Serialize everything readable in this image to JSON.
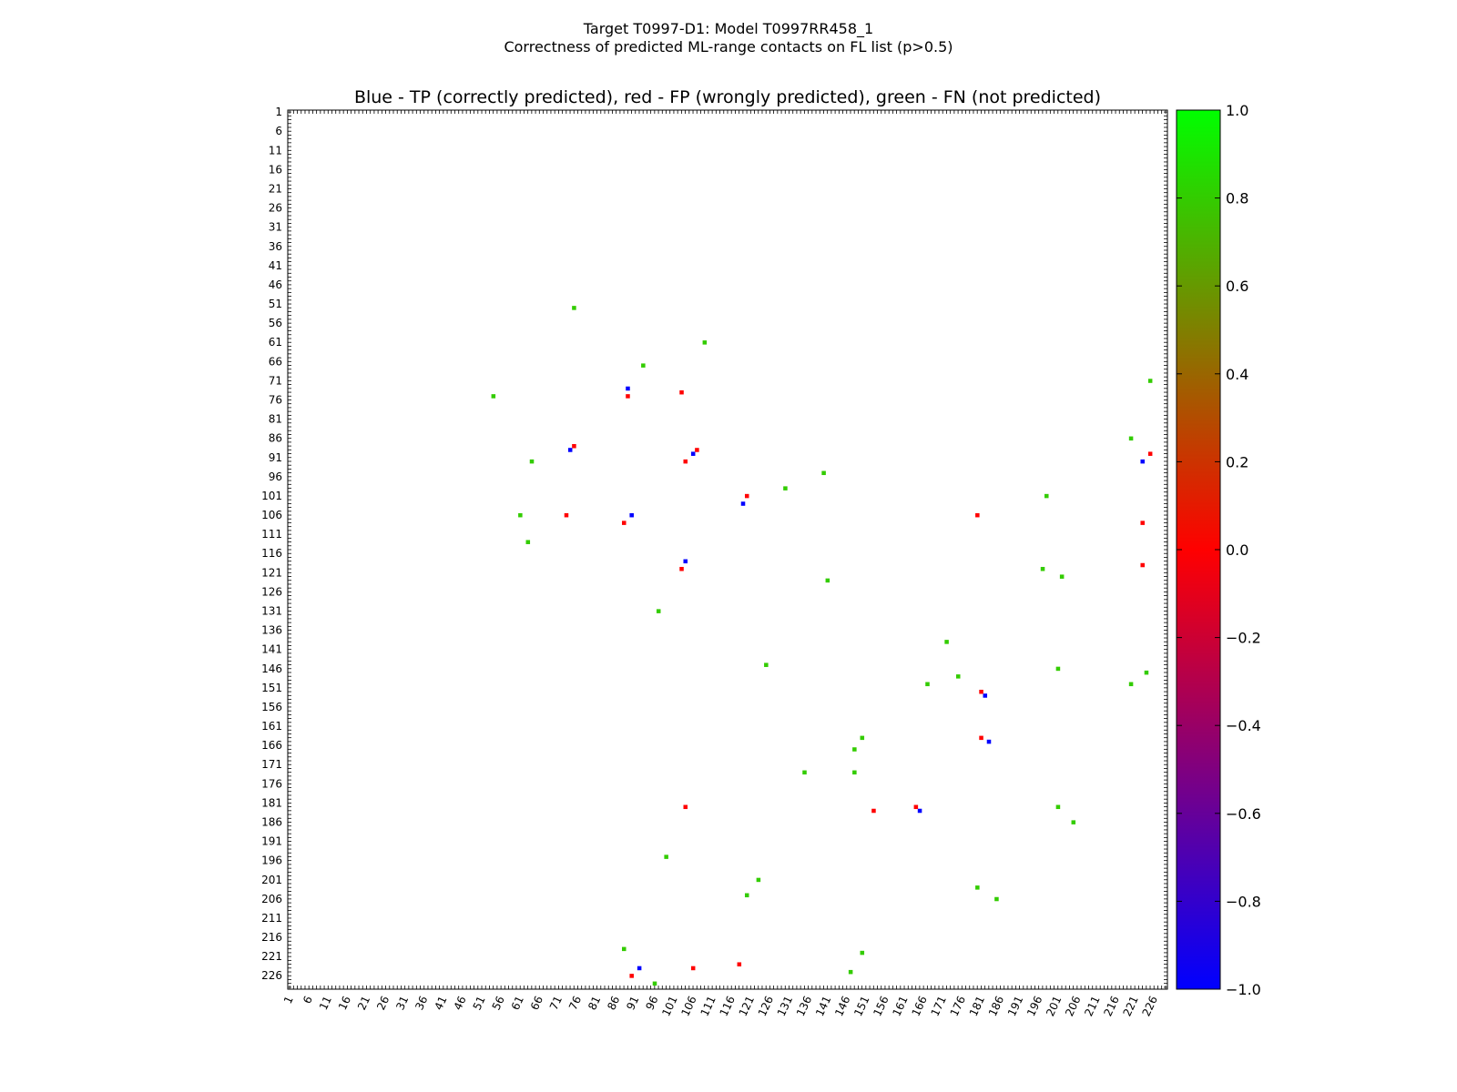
{
  "figure": {
    "suptitle_line1": "Target T0997-D1: Model T0997RR458_1",
    "suptitle_line2": "Correctness of predicted ML-range contacts on FL list (p>0.5)"
  },
  "chart_data": {
    "type": "heatmap",
    "title": "Blue - TP (correctly predicted), red - FP (wrongly predicted), green - FN (not predicted)",
    "xlabel": "",
    "ylabel": "",
    "xlim": [
      1,
      229
    ],
    "ylim": [
      1,
      229
    ],
    "y_inverted": true,
    "tick_labels": [
      "1",
      "6",
      "11",
      "16",
      "21",
      "26",
      "31",
      "36",
      "41",
      "46",
      "51",
      "56",
      "61",
      "66",
      "71",
      "76",
      "81",
      "86",
      "91",
      "96",
      "101",
      "106",
      "111",
      "116",
      "121",
      "126",
      "131",
      "136",
      "141",
      "146",
      "151",
      "156",
      "161",
      "166",
      "171",
      "176",
      "181",
      "186",
      "191",
      "196",
      "201",
      "206",
      "211",
      "216",
      "221",
      "226"
    ],
    "colorbar": {
      "min": -1.0,
      "max": 1.0,
      "tick_labels": [
        "1.0",
        "0.8",
        "0.6",
        "0.4",
        "0.2",
        "0.0",
        "−0.2",
        "−0.4",
        "−0.6",
        "−0.8",
        "−1.0"
      ],
      "tick_values": [
        1.0,
        0.8,
        0.6,
        0.4,
        0.2,
        0.0,
        -0.2,
        -0.4,
        -0.6,
        -0.8,
        -1.0
      ],
      "colormap": [
        "#0000ff",
        "#ff0000",
        "#00ff00"
      ]
    },
    "category_colors": {
      "TP": "#0000ff",
      "FP": "#ff0000",
      "FN": "#33cc00"
    },
    "contacts": [
      {
        "type": "TP",
        "x": 89,
        "y": 73
      },
      {
        "type": "FP",
        "x": 89,
        "y": 75
      },
      {
        "type": "FP",
        "x": 103,
        "y": 74
      },
      {
        "type": "TP",
        "x": 74,
        "y": 89
      },
      {
        "type": "FP",
        "x": 75,
        "y": 88
      },
      {
        "type": "TP",
        "x": 106,
        "y": 90
      },
      {
        "type": "FP",
        "x": 107,
        "y": 89
      },
      {
        "type": "FP",
        "x": 104,
        "y": 92
      },
      {
        "type": "TP",
        "x": 119,
        "y": 103
      },
      {
        "type": "FP",
        "x": 120,
        "y": 101
      },
      {
        "type": "FP",
        "x": 73,
        "y": 106
      },
      {
        "type": "TP",
        "x": 90,
        "y": 106
      },
      {
        "type": "FP",
        "x": 88,
        "y": 108
      },
      {
        "type": "TP",
        "x": 104,
        "y": 118
      },
      {
        "type": "FP",
        "x": 103,
        "y": 120
      },
      {
        "type": "TP",
        "x": 223,
        "y": 92
      },
      {
        "type": "FP",
        "x": 225,
        "y": 90
      },
      {
        "type": "FP",
        "x": 223,
        "y": 108
      },
      {
        "type": "FP",
        "x": 223,
        "y": 119
      },
      {
        "type": "FP",
        "x": 180,
        "y": 106
      },
      {
        "type": "TP",
        "x": 182,
        "y": 153
      },
      {
        "type": "FP",
        "x": 181,
        "y": 152
      },
      {
        "type": "TP",
        "x": 183,
        "y": 165
      },
      {
        "type": "FP",
        "x": 181,
        "y": 164
      },
      {
        "type": "FP",
        "x": 153,
        "y": 183
      },
      {
        "type": "TP",
        "x": 165,
        "y": 183
      },
      {
        "type": "FP",
        "x": 164,
        "y": 182
      },
      {
        "type": "FP",
        "x": 104,
        "y": 182
      },
      {
        "type": "TP",
        "x": 92,
        "y": 224
      },
      {
        "type": "FP",
        "x": 90,
        "y": 226
      },
      {
        "type": "FP",
        "x": 106,
        "y": 224
      },
      {
        "type": "FP",
        "x": 118,
        "y": 223
      },
      {
        "type": "FN",
        "x": 75,
        "y": 52
      },
      {
        "type": "FN",
        "x": 109,
        "y": 61
      },
      {
        "type": "FN",
        "x": 93,
        "y": 67
      },
      {
        "type": "FN",
        "x": 54,
        "y": 75
      },
      {
        "type": "FN",
        "x": 64,
        "y": 92
      },
      {
        "type": "FN",
        "x": 61,
        "y": 106
      },
      {
        "type": "FN",
        "x": 63,
        "y": 113
      },
      {
        "type": "FN",
        "x": 130,
        "y": 99
      },
      {
        "type": "FN",
        "x": 140,
        "y": 95
      },
      {
        "type": "FN",
        "x": 198,
        "y": 101
      },
      {
        "type": "FN",
        "x": 202,
        "y": 122
      },
      {
        "type": "FN",
        "x": 197,
        "y": 120
      },
      {
        "type": "FN",
        "x": 141,
        "y": 123
      },
      {
        "type": "FN",
        "x": 97,
        "y": 131
      },
      {
        "type": "FN",
        "x": 125,
        "y": 145
      },
      {
        "type": "FN",
        "x": 167,
        "y": 150
      },
      {
        "type": "FN",
        "x": 175,
        "y": 148
      },
      {
        "type": "FN",
        "x": 172,
        "y": 139
      },
      {
        "type": "FN",
        "x": 201,
        "y": 146
      },
      {
        "type": "FN",
        "x": 220,
        "y": 150
      },
      {
        "type": "FN",
        "x": 224,
        "y": 147
      },
      {
        "type": "FN",
        "x": 148,
        "y": 167
      },
      {
        "type": "FN",
        "x": 150,
        "y": 164
      },
      {
        "type": "FN",
        "x": 135,
        "y": 173
      },
      {
        "type": "FN",
        "x": 148,
        "y": 173
      },
      {
        "type": "FN",
        "x": 205,
        "y": 186
      },
      {
        "type": "FN",
        "x": 201,
        "y": 182
      },
      {
        "type": "FN",
        "x": 99,
        "y": 195
      },
      {
        "type": "FN",
        "x": 123,
        "y": 201
      },
      {
        "type": "FN",
        "x": 120,
        "y": 205
      },
      {
        "type": "FN",
        "x": 185,
        "y": 206
      },
      {
        "type": "FN",
        "x": 180,
        "y": 203
      },
      {
        "type": "FN",
        "x": 147,
        "y": 225
      },
      {
        "type": "FN",
        "x": 150,
        "y": 220
      },
      {
        "type": "FN",
        "x": 88,
        "y": 219
      },
      {
        "type": "FN",
        "x": 96,
        "y": 228
      },
      {
        "type": "FN",
        "x": 220,
        "y": 86
      },
      {
        "type": "FN",
        "x": 225,
        "y": 71
      }
    ]
  }
}
